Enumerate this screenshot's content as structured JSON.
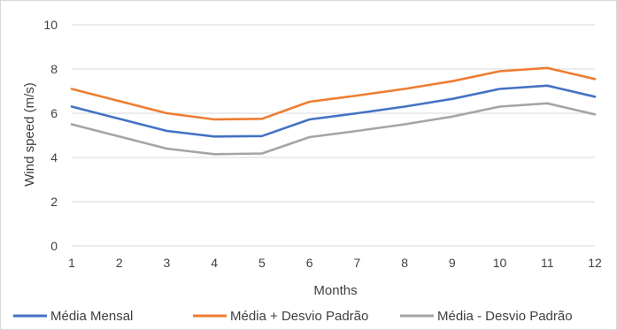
{
  "chart_data": {
    "type": "line",
    "xlabel": "Months",
    "ylabel": "Wind speed (m/s)",
    "x": [
      1,
      2,
      3,
      4,
      5,
      6,
      7,
      8,
      9,
      10,
      11,
      12
    ],
    "xticks": [
      "1",
      "2",
      "3",
      "4",
      "5",
      "6",
      "7",
      "8",
      "9",
      "10",
      "11",
      "12"
    ],
    "ylim": [
      0,
      10
    ],
    "yticks": [
      "0",
      "2",
      "4",
      "6",
      "8",
      "10"
    ],
    "grid": true,
    "legend_position": "bottom",
    "series": [
      {
        "name": "Média Mensal",
        "color": "#4472c4",
        "values": [
          6.3,
          5.75,
          5.2,
          4.95,
          4.97,
          5.72,
          6.0,
          6.3,
          6.65,
          7.1,
          7.25,
          6.75
        ]
      },
      {
        "name": "Média + Desvio Padrão",
        "color": "#ed7d31",
        "values": [
          7.1,
          6.55,
          6.0,
          5.72,
          5.75,
          6.52,
          6.8,
          7.1,
          7.45,
          7.9,
          8.05,
          7.55
        ]
      },
      {
        "name": "Média - Desvio Padrão",
        "color": "#a5a5a5",
        "values": [
          5.5,
          4.95,
          4.4,
          4.15,
          4.18,
          4.92,
          5.2,
          5.5,
          5.85,
          6.3,
          6.45,
          5.95
        ]
      }
    ]
  }
}
